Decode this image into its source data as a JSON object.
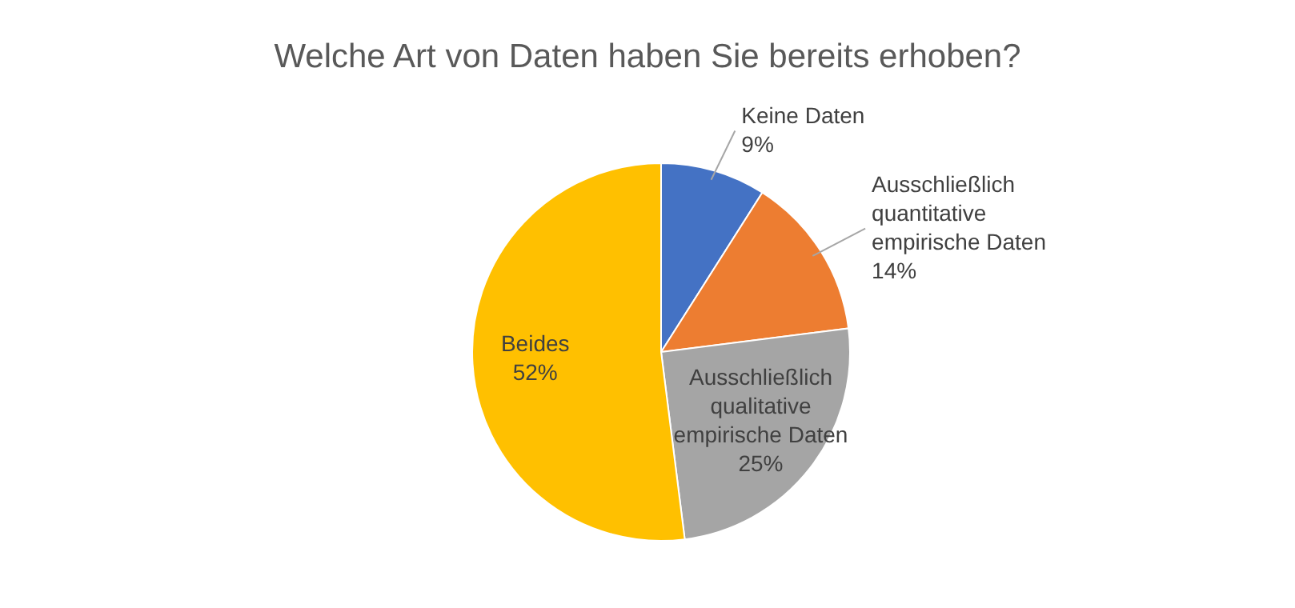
{
  "chart_data": {
    "type": "pie",
    "title": "Welche Art von Daten haben Sie bereits erhoben?",
    "categories": [
      "Keine Daten",
      "Ausschließlich quantitative empirische Daten",
      "Ausschließlich qualitative empirische Daten",
      "Beides"
    ],
    "values": [
      9,
      14,
      25,
      52
    ],
    "value_labels": [
      "9%",
      "14%",
      "25%",
      "52%"
    ],
    "colors": [
      "#4472c4",
      "#ed7d31",
      "#a5a5a5",
      "#ffc000"
    ]
  }
}
